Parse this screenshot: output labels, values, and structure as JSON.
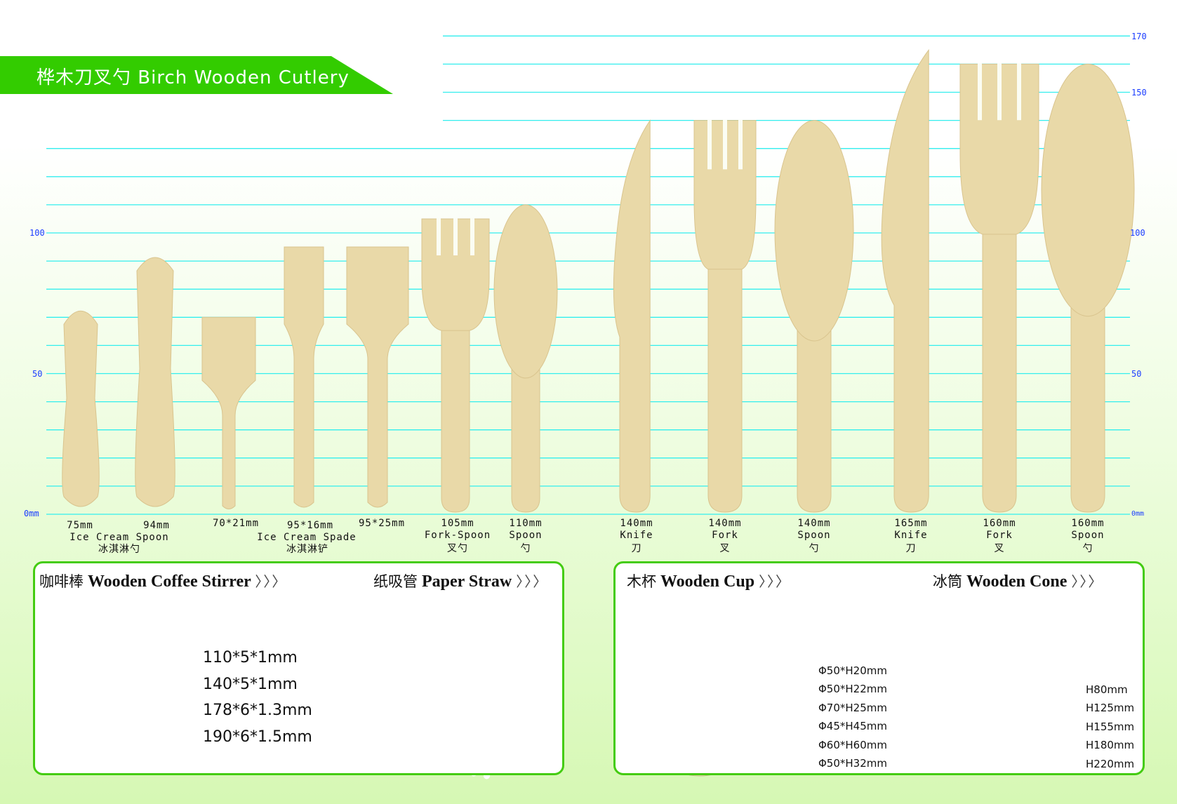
{
  "banner": {
    "title": "桦木刀叉勺  Birch Wooden Cutlery",
    "color": "#33cc00"
  },
  "axis": {
    "unit_zero": "0mm",
    "left_ticks": [
      "100",
      "50",
      "0mm"
    ],
    "right_ticks": [
      "170",
      "150",
      "100",
      "50",
      "0mm"
    ],
    "grid_color": "#33eeee",
    "tick_color": "#1a3cff"
  },
  "cutlery": [
    {
      "type": "icecream",
      "length_mm": 75,
      "size": "75mm"
    },
    {
      "type": "icecream",
      "length_mm": 94,
      "size": "94mm"
    },
    {
      "type": "spade-small",
      "length_mm": 70,
      "size": "70*21mm"
    },
    {
      "type": "spade",
      "length_mm": 95,
      "size": "95*16mm"
    },
    {
      "type": "spade-wide",
      "length_mm": 95,
      "size": "95*25mm"
    },
    {
      "type": "fork",
      "length_mm": 105,
      "size": "105mm",
      "name": "Fork-Spoon",
      "cn": "叉勺"
    },
    {
      "type": "spoon",
      "length_mm": 110,
      "size": "110mm",
      "name": "Spoon",
      "cn": "勺"
    },
    {
      "type": "knife",
      "length_mm": 140,
      "size": "140mm",
      "name": "Knife",
      "cn": "刀"
    },
    {
      "type": "fork",
      "length_mm": 140,
      "size": "140mm",
      "name": "Fork",
      "cn": "叉"
    },
    {
      "type": "spoon",
      "length_mm": 140,
      "size": "140mm",
      "name": "Spoon",
      "cn": "勺"
    },
    {
      "type": "knife",
      "length_mm": 165,
      "size": "165mm",
      "name": "Knife",
      "cn": "刀"
    },
    {
      "type": "fork",
      "length_mm": 160,
      "size": "160mm",
      "name": "Fork",
      "cn": "叉"
    },
    {
      "type": "spoon",
      "length_mm": 160,
      "size": "160mm",
      "name": "Spoon",
      "cn": "勺"
    }
  ],
  "group_labels": {
    "ice_cream_spoon": {
      "name": "Ice Cream Spoon",
      "cn": "冰淇淋勺"
    },
    "ice_cream_spade": {
      "name": "Ice Cream Spade",
      "cn": "冰淇淋铲"
    }
  },
  "stirrer": {
    "cn": "咖啡棒",
    "title": "Wooden Coffee Stirrer",
    "arrows": "〉〉〉",
    "sizes": [
      "110*5*1mm",
      "140*5*1mm",
      "178*6*1.3mm",
      "190*6*1.5mm"
    ]
  },
  "straw": {
    "cn": "纸吸管",
    "title": "Paper Straw",
    "arrows": "〉〉〉",
    "colors": [
      "#e0204a",
      "#e0204a",
      "#66cc22",
      "#4433cc",
      "#e0204a",
      "#eedd22",
      "#66cc22",
      "#4433cc",
      "#e0204a",
      "#eedd22"
    ]
  },
  "cup": {
    "cn": "木杯",
    "title": "Wooden Cup",
    "arrows": "〉〉〉",
    "sizes": [
      "Φ50*H20mm",
      "Φ50*H22mm",
      "Φ70*H25mm",
      "Φ45*H45mm",
      "Φ60*H60mm",
      "Φ50*H32mm"
    ]
  },
  "cone": {
    "cn": "冰筒",
    "title": "Wooden Cone",
    "arrows": "〉〉〉",
    "sizes": [
      "H80mm",
      "H125mm",
      "H155mm",
      "H180mm",
      "H220mm"
    ]
  },
  "colors": {
    "wood": "#e9d9a8",
    "wood_dark": "#d9c48e",
    "panel_border": "#44cc11"
  }
}
